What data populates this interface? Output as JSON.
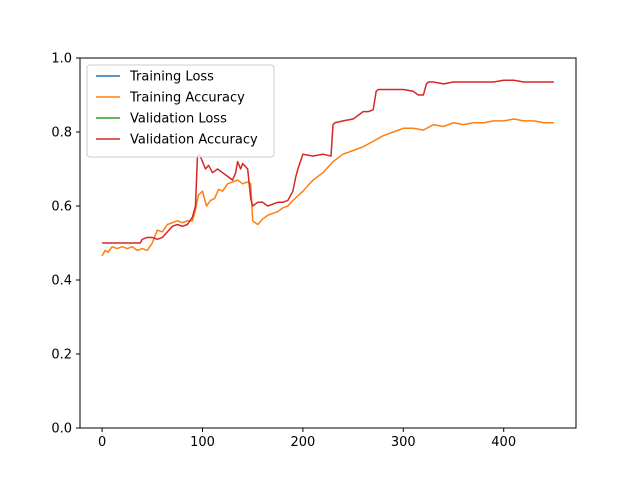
{
  "chart_data": {
    "type": "line",
    "xlim": [
      -22,
      472
    ],
    "ylim": [
      0.0,
      1.0
    ],
    "x_ticks": [
      0,
      100,
      200,
      300,
      400
    ],
    "y_ticks": [
      0.0,
      0.2,
      0.4,
      0.6,
      0.8,
      1.0
    ],
    "x_tick_labels": [
      "0",
      "100",
      "200",
      "300",
      "400"
    ],
    "y_tick_labels": [
      "0.0",
      "0.2",
      "0.4",
      "0.6",
      "0.8",
      "1.0"
    ],
    "grid": false,
    "legend_position": "top-left",
    "series": [
      {
        "name": "Training Loss",
        "color": "#1f77b4",
        "x": [],
        "y": []
      },
      {
        "name": "Training Accuracy",
        "color": "#ff7f0e",
        "x": [
          0,
          3,
          6,
          10,
          15,
          20,
          25,
          30,
          35,
          40,
          45,
          50,
          55,
          60,
          65,
          70,
          75,
          80,
          85,
          90,
          93,
          96,
          100,
          104,
          108,
          112,
          116,
          120,
          125,
          130,
          135,
          140,
          145,
          148,
          150,
          155,
          160,
          165,
          170,
          175,
          180,
          185,
          190,
          200,
          210,
          220,
          230,
          240,
          250,
          260,
          270,
          280,
          290,
          300,
          310,
          320,
          330,
          340,
          350,
          360,
          370,
          380,
          390,
          400,
          410,
          420,
          430,
          440,
          450
        ],
        "y": [
          0.465,
          0.48,
          0.475,
          0.49,
          0.485,
          0.49,
          0.485,
          0.49,
          0.48,
          0.485,
          0.48,
          0.5,
          0.535,
          0.53,
          0.55,
          0.555,
          0.56,
          0.555,
          0.56,
          0.56,
          0.59,
          0.63,
          0.64,
          0.6,
          0.615,
          0.62,
          0.645,
          0.64,
          0.66,
          0.665,
          0.67,
          0.66,
          0.665,
          0.66,
          0.56,
          0.55,
          0.565,
          0.575,
          0.58,
          0.585,
          0.595,
          0.6,
          0.615,
          0.64,
          0.67,
          0.69,
          0.72,
          0.74,
          0.75,
          0.76,
          0.775,
          0.79,
          0.8,
          0.81,
          0.81,
          0.805,
          0.82,
          0.815,
          0.825,
          0.82,
          0.825,
          0.825,
          0.83,
          0.83,
          0.835,
          0.83,
          0.83,
          0.825,
          0.825
        ]
      },
      {
        "name": "Validation Loss",
        "color": "#2ca02c",
        "x": [],
        "y": []
      },
      {
        "name": "Validation Accuracy",
        "color": "#d62728",
        "x": [
          0,
          10,
          20,
          30,
          38,
          40,
          45,
          50,
          55,
          60,
          65,
          70,
          75,
          80,
          85,
          90,
          93,
          95,
          97,
          100,
          103,
          106,
          110,
          115,
          120,
          125,
          130,
          133,
          135,
          138,
          140,
          145,
          148,
          150,
          155,
          160,
          165,
          170,
          175,
          180,
          185,
          190,
          193,
          195,
          200,
          210,
          220,
          228,
          230,
          232,
          240,
          250,
          255,
          260,
          265,
          270,
          273,
          275,
          280,
          290,
          300,
          310,
          315,
          320,
          323,
          325,
          330,
          340,
          350,
          360,
          370,
          380,
          390,
          400,
          410,
          420,
          430,
          440,
          450
        ],
        "y": [
          0.5,
          0.5,
          0.5,
          0.5,
          0.5,
          0.51,
          0.515,
          0.515,
          0.51,
          0.515,
          0.53,
          0.545,
          0.55,
          0.545,
          0.55,
          0.57,
          0.6,
          0.735,
          0.74,
          0.72,
          0.7,
          0.71,
          0.69,
          0.7,
          0.69,
          0.68,
          0.67,
          0.69,
          0.72,
          0.7,
          0.715,
          0.7,
          0.62,
          0.6,
          0.61,
          0.61,
          0.6,
          0.605,
          0.61,
          0.61,
          0.615,
          0.64,
          0.68,
          0.7,
          0.74,
          0.735,
          0.74,
          0.735,
          0.82,
          0.825,
          0.83,
          0.835,
          0.845,
          0.855,
          0.855,
          0.86,
          0.91,
          0.915,
          0.915,
          0.915,
          0.915,
          0.91,
          0.9,
          0.9,
          0.93,
          0.935,
          0.935,
          0.93,
          0.935,
          0.935,
          0.935,
          0.935,
          0.935,
          0.94,
          0.94,
          0.935,
          0.935,
          0.935,
          0.935
        ]
      }
    ]
  }
}
